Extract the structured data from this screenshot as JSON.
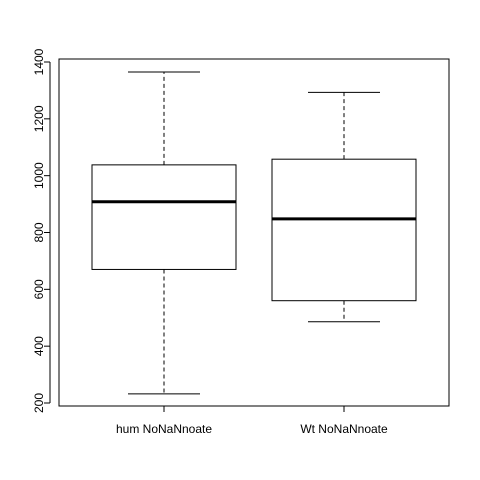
{
  "chart_data": {
    "type": "boxplot",
    "categories": [
      "hum NoNaNnoate",
      "Wt NoNaNnoate"
    ],
    "boxes": [
      {
        "min": 232,
        "q1": 670,
        "median": 908,
        "q3": 1038,
        "max": 1365
      },
      {
        "min": 486,
        "q1": 560,
        "median": 848,
        "q3": 1058,
        "max": 1293
      }
    ],
    "y_ticks": [
      200,
      400,
      600,
      800,
      1000,
      1200,
      1400
    ],
    "y_tick_labels": [
      "200",
      "400",
      "600",
      "800",
      "1000",
      "1200",
      "1400"
    ],
    "ylim": [
      190,
      1405
    ],
    "title": "",
    "xlabel": "",
    "ylabel": "",
    "colors": {
      "box_fill": "#ffffff",
      "stroke": "#000000"
    }
  }
}
